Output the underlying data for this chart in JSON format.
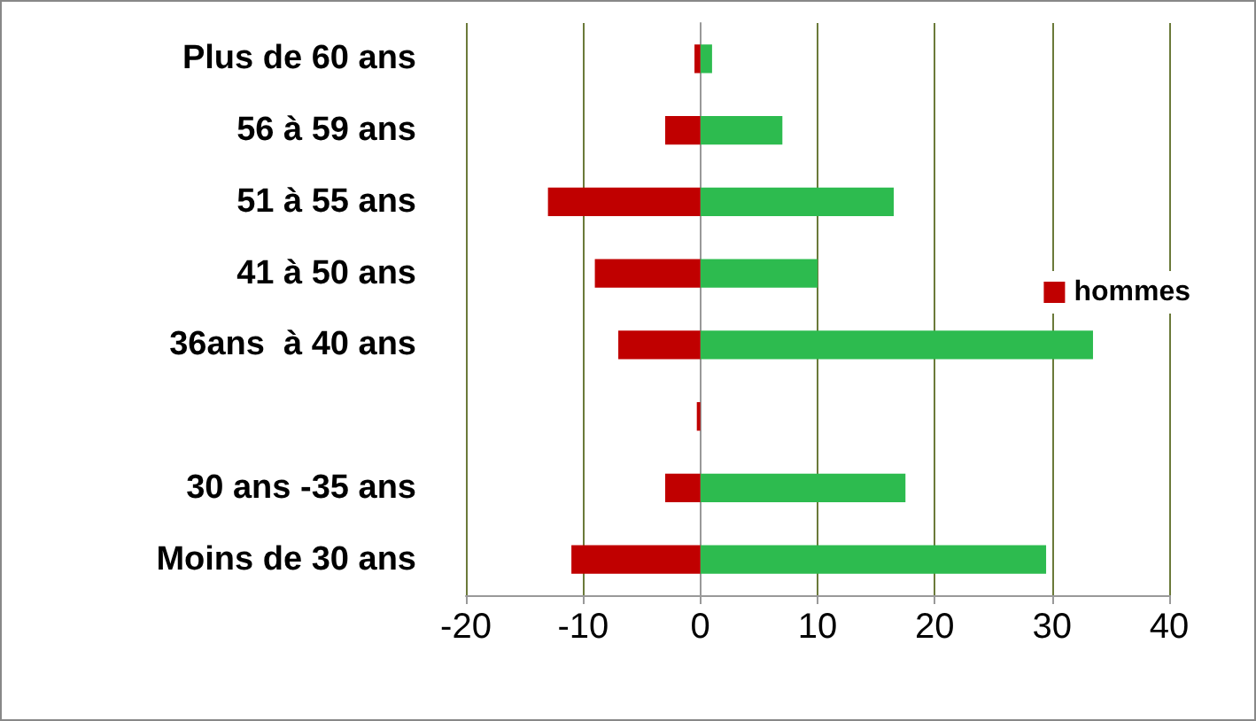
{
  "chart_data": {
    "type": "bar",
    "orientation": "horizontal",
    "categories": [
      "Plus de 60 ans",
      "56 à 59 ans",
      "51 à 55 ans",
      "41 à 50 ans",
      "36ans  à 40 ans",
      null,
      "30 ans -35 ans",
      "Moins de 30 ans"
    ],
    "series": [
      {
        "color": "#2dbb4f",
        "values": [
          1,
          7,
          16.5,
          10,
          33.5,
          null,
          17.5,
          29.5
        ]
      },
      {
        "name": "hommes",
        "color": "#c00000",
        "values": [
          -0.5,
          -3,
          -13,
          -9,
          -7,
          -0.3,
          -3,
          -11
        ]
      }
    ],
    "stacked": true,
    "xlim": [
      -20,
      40
    ],
    "xticks": [
      -20,
      -10,
      0,
      10,
      20,
      30,
      40
    ],
    "grid": "x",
    "legend": "right"
  }
}
